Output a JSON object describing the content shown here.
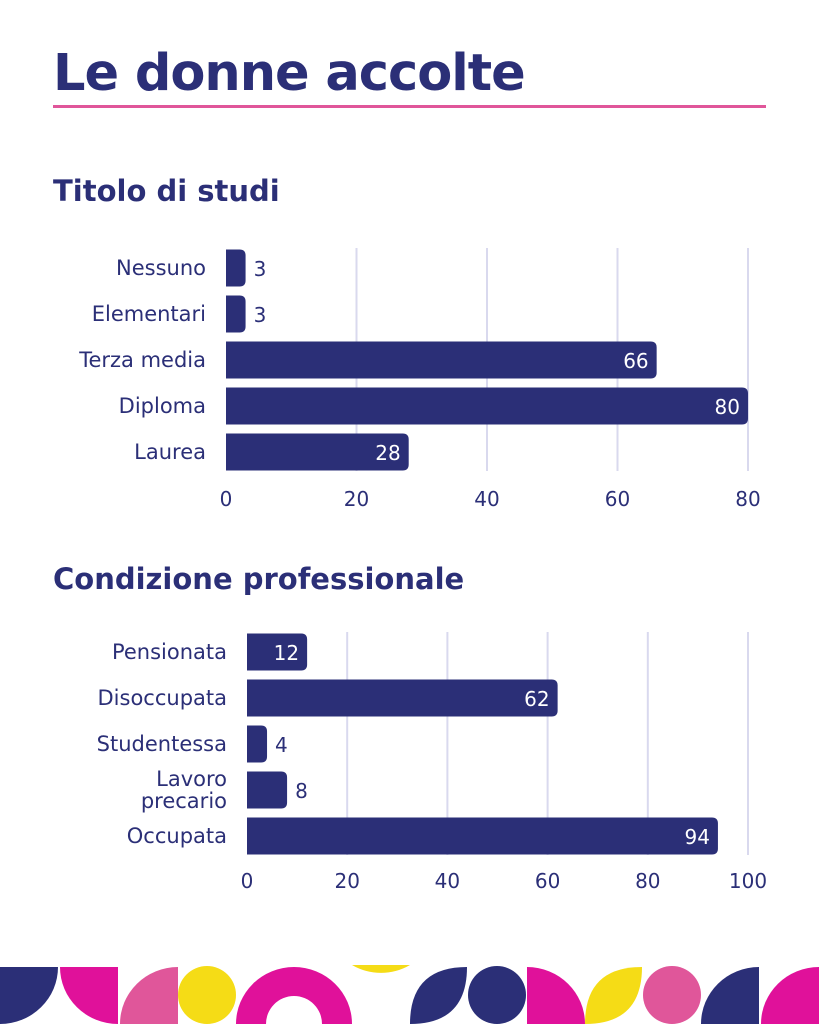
{
  "page": {
    "title": "Le donne accolte"
  },
  "colors": {
    "bar": "#2b2f77",
    "accent_rule": "#e0569a",
    "grid": "#d9d9ee",
    "text": "#2b2f77",
    "pink": "#e0569a",
    "magenta": "#e0119a",
    "yellow": "#f5dc16",
    "navy": "#2b2f77"
  },
  "chart_data": [
    {
      "type": "bar",
      "orientation": "horizontal",
      "title": "Titolo di studi",
      "categories": [
        "Nessuno",
        "Elementari",
        "Terza media",
        "Diploma",
        "Laurea"
      ],
      "values": [
        3,
        3,
        66,
        80,
        28
      ],
      "xlim": [
        0,
        80
      ],
      "xticks": [
        0,
        20,
        40,
        60,
        80
      ],
      "grid": "vertical"
    },
    {
      "type": "bar",
      "orientation": "horizontal",
      "title": "Condizione professionale",
      "categories": [
        "Pensionata",
        "Disoccupata",
        "Studentessa",
        "Lavoro precario",
        "Occupata"
      ],
      "values": [
        12,
        62,
        4,
        8,
        94
      ],
      "xlim": [
        0,
        100
      ],
      "xticks": [
        0,
        20,
        40,
        60,
        80,
        100
      ],
      "grid": "vertical"
    }
  ]
}
